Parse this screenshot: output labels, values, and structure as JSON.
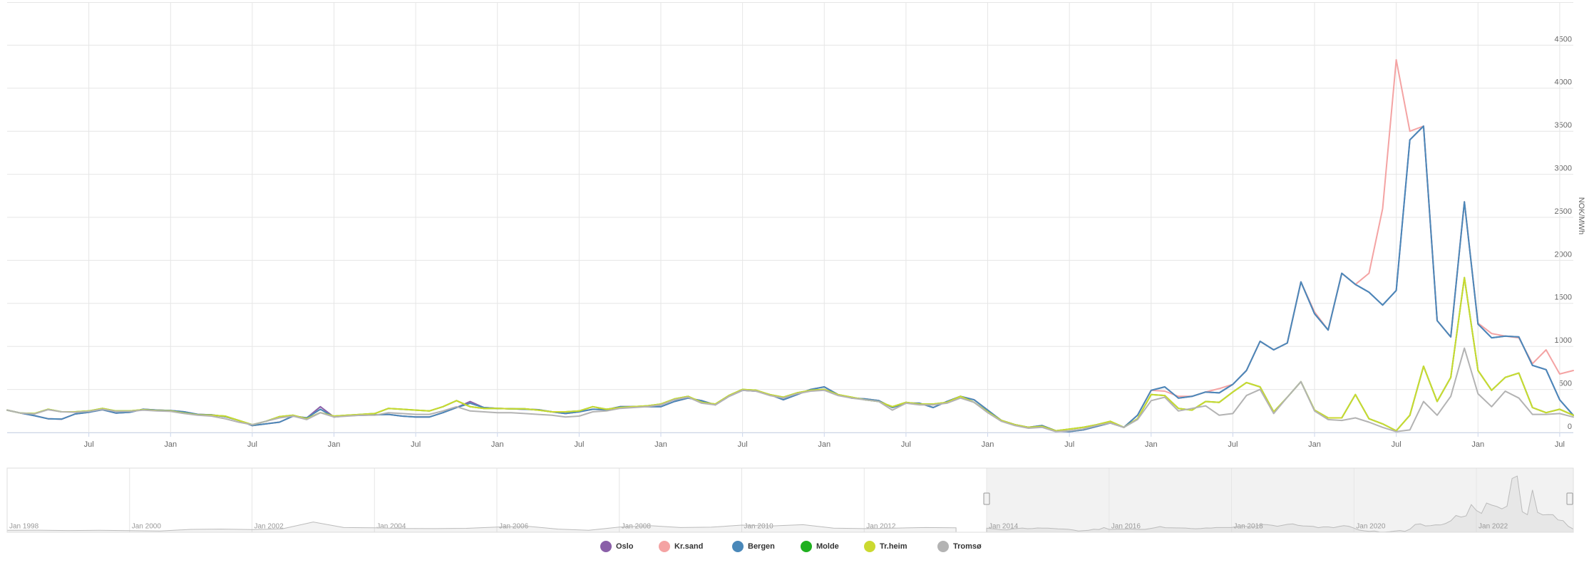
{
  "chart_data": {
    "type": "line",
    "y_axis_label": "NOK/MWh",
    "ylim": [
      0,
      5000
    ],
    "yticks": [
      0,
      500,
      1000,
      1500,
      2000,
      2500,
      3000,
      3500,
      4000,
      4500
    ],
    "xlim": [
      "2014-01",
      "2023-08"
    ],
    "xticks": [
      {
        "value": "2014-07",
        "label": "Jul"
      },
      {
        "value": "2015-01",
        "label": "Jan"
      },
      {
        "value": "2015-07",
        "label": "Jul"
      },
      {
        "value": "2016-01",
        "label": "Jan"
      },
      {
        "value": "2016-07",
        "label": "Jul"
      },
      {
        "value": "2017-01",
        "label": "Jan"
      },
      {
        "value": "2017-07",
        "label": "Jul"
      },
      {
        "value": "2018-01",
        "label": "Jan"
      },
      {
        "value": "2018-07",
        "label": "Jul"
      },
      {
        "value": "2019-01",
        "label": "Jan"
      },
      {
        "value": "2019-07",
        "label": "Jul"
      },
      {
        "value": "2020-01",
        "label": "Jan"
      },
      {
        "value": "2020-07",
        "label": "Jul"
      },
      {
        "value": "2021-01",
        "label": "Jan"
      },
      {
        "value": "2021-07",
        "label": "Jul"
      },
      {
        "value": "2022-01",
        "label": "Jan"
      },
      {
        "value": "2022-07",
        "label": "Jul"
      },
      {
        "value": "2023-01",
        "label": "Jan"
      },
      {
        "value": "2023-07",
        "label": "Jul"
      }
    ],
    "grid": true,
    "legend": "bottom",
    "x": [
      "2014-01",
      "2014-02",
      "2014-03",
      "2014-04",
      "2014-05",
      "2014-06",
      "2014-07",
      "2014-08",
      "2014-09",
      "2014-10",
      "2014-11",
      "2014-12",
      "2015-01",
      "2015-02",
      "2015-03",
      "2015-04",
      "2015-05",
      "2015-06",
      "2015-07",
      "2015-08",
      "2015-09",
      "2015-10",
      "2015-11",
      "2015-12",
      "2016-01",
      "2016-02",
      "2016-03",
      "2016-04",
      "2016-05",
      "2016-06",
      "2016-07",
      "2016-08",
      "2016-09",
      "2016-10",
      "2016-11",
      "2016-12",
      "2017-01",
      "2017-02",
      "2017-03",
      "2017-04",
      "2017-05",
      "2017-06",
      "2017-07",
      "2017-08",
      "2017-09",
      "2017-10",
      "2017-11",
      "2017-12",
      "2018-01",
      "2018-02",
      "2018-03",
      "2018-04",
      "2018-05",
      "2018-06",
      "2018-07",
      "2018-08",
      "2018-09",
      "2018-10",
      "2018-11",
      "2018-12",
      "2019-01",
      "2019-02",
      "2019-03",
      "2019-04",
      "2019-05",
      "2019-06",
      "2019-07",
      "2019-08",
      "2019-09",
      "2019-10",
      "2019-11",
      "2019-12",
      "2020-01",
      "2020-02",
      "2020-03",
      "2020-04",
      "2020-05",
      "2020-06",
      "2020-07",
      "2020-08",
      "2020-09",
      "2020-10",
      "2020-11",
      "2020-12",
      "2021-01",
      "2021-02",
      "2021-03",
      "2021-04",
      "2021-05",
      "2021-06",
      "2021-07",
      "2021-08",
      "2021-09",
      "2021-10",
      "2021-11",
      "2021-12",
      "2022-01",
      "2022-02",
      "2022-03",
      "2022-04",
      "2022-05",
      "2022-06",
      "2022-07",
      "2022-08",
      "2022-09",
      "2022-10",
      "2022-11",
      "2022-12",
      "2023-01",
      "2023-02",
      "2023-03",
      "2023-04",
      "2023-05",
      "2023-06",
      "2023-07",
      "2023-08"
    ],
    "series": [
      {
        "name": "Oslo",
        "color": "#8a5fa8",
        "values": [
          260,
          225,
          195,
          160,
          155,
          215,
          235,
          265,
          225,
          235,
          270,
          260,
          255,
          240,
          210,
          205,
          185,
          140,
          80,
          100,
          120,
          190,
          170,
          300,
          180,
          195,
          200,
          205,
          210,
          190,
          180,
          180,
          230,
          290,
          360,
          290,
          280,
          275,
          270,
          265,
          240,
          220,
          240,
          270,
          265,
          300,
          300,
          300,
          300,
          360,
          400,
          370,
          320,
          420,
          490,
          480,
          440,
          380,
          440,
          500,
          530,
          440,
          400,
          390,
          370,
          290,
          340,
          340,
          290,
          360,
          420,
          380,
          260,
          140,
          90,
          60,
          80,
          20,
          10,
          30,
          70,
          110,
          60,
          200,
          490,
          530,
          400,
          420,
          470,
          460,
          560,
          720,
          1060,
          960,
          1040,
          1750,
          1380,
          1190,
          1850,
          1720,
          1630,
          1480,
          1650,
          3400,
          3560,
          1300,
          1110,
          2680,
          1260,
          1100,
          1120,
          1110,
          780,
          730,
          380,
          200
        ]
      },
      {
        "name": "Kr.sand",
        "color": "#f4a3a3",
        "values": [
          260,
          225,
          195,
          160,
          155,
          215,
          235,
          265,
          225,
          235,
          270,
          260,
          255,
          240,
          210,
          205,
          185,
          140,
          80,
          100,
          120,
          190,
          170,
          270,
          180,
          195,
          200,
          205,
          210,
          190,
          180,
          180,
          230,
          290,
          340,
          290,
          280,
          275,
          270,
          265,
          240,
          220,
          240,
          270,
          265,
          300,
          300,
          300,
          300,
          360,
          400,
          370,
          320,
          420,
          490,
          480,
          440,
          380,
          440,
          500,
          530,
          440,
          400,
          390,
          370,
          290,
          340,
          340,
          290,
          360,
          420,
          380,
          260,
          140,
          90,
          60,
          80,
          20,
          10,
          30,
          70,
          110,
          60,
          200,
          490,
          480,
          420,
          420,
          470,
          510,
          560,
          720,
          1060,
          960,
          1040,
          1750,
          1400,
          1190,
          1850,
          1720,
          1850,
          2600,
          4330,
          3500,
          3560,
          1300,
          1110,
          2680,
          1270,
          1150,
          1120,
          1100,
          800,
          960,
          680,
          720
        ]
      },
      {
        "name": "Bergen",
        "color": "#4a88b9",
        "values": [
          260,
          225,
          195,
          160,
          155,
          215,
          235,
          265,
          225,
          235,
          270,
          260,
          255,
          240,
          210,
          205,
          185,
          140,
          80,
          100,
          120,
          190,
          170,
          270,
          180,
          195,
          200,
          205,
          210,
          190,
          180,
          180,
          230,
          290,
          340,
          290,
          280,
          275,
          270,
          265,
          240,
          220,
          240,
          270,
          265,
          300,
          300,
          300,
          300,
          360,
          400,
          370,
          320,
          420,
          490,
          480,
          440,
          380,
          440,
          500,
          530,
          440,
          400,
          390,
          370,
          290,
          340,
          340,
          290,
          360,
          420,
          380,
          260,
          140,
          90,
          60,
          80,
          20,
          10,
          30,
          70,
          110,
          60,
          200,
          490,
          530,
          400,
          420,
          470,
          460,
          560,
          720,
          1060,
          960,
          1040,
          1750,
          1380,
          1190,
          1850,
          1720,
          1630,
          1480,
          1650,
          3400,
          3560,
          1300,
          1110,
          2680,
          1260,
          1100,
          1120,
          1110,
          780,
          730,
          380,
          200
        ]
      },
      {
        "name": "Molde",
        "color": "#1fb01f",
        "values": [
          260,
          225,
          220,
          270,
          240,
          240,
          250,
          280,
          250,
          250,
          265,
          255,
          250,
          225,
          205,
          200,
          190,
          140,
          90,
          130,
          185,
          200,
          160,
          230,
          190,
          200,
          210,
          220,
          280,
          270,
          260,
          250,
          300,
          370,
          300,
          280,
          280,
          275,
          275,
          260,
          240,
          240,
          250,
          300,
          270,
          290,
          300,
          310,
          330,
          390,
          420,
          350,
          330,
          430,
          500,
          490,
          440,
          410,
          460,
          490,
          500,
          440,
          410,
          380,
          360,
          300,
          350,
          330,
          330,
          350,
          420,
          350,
          240,
          140,
          90,
          60,
          70,
          20,
          40,
          60,
          90,
          130,
          60,
          160,
          440,
          430,
          280,
          260,
          360,
          350,
          470,
          580,
          530,
          240,
          410,
          590,
          260,
          170,
          170,
          440,
          160,
          100,
          20,
          200,
          770,
          360,
          640,
          1800,
          720,
          490,
          640,
          690,
          290,
          230,
          270,
          200
        ]
      },
      {
        "name": "Tr.heim",
        "color": "#cbd930",
        "values": [
          260,
          225,
          220,
          270,
          240,
          240,
          250,
          280,
          250,
          250,
          265,
          255,
          250,
          225,
          205,
          200,
          190,
          140,
          90,
          130,
          185,
          200,
          160,
          230,
          190,
          200,
          210,
          220,
          280,
          270,
          260,
          250,
          300,
          370,
          300,
          280,
          280,
          275,
          275,
          260,
          240,
          240,
          250,
          300,
          270,
          290,
          300,
          310,
          330,
          390,
          420,
          350,
          330,
          430,
          500,
          490,
          440,
          410,
          460,
          490,
          500,
          440,
          410,
          380,
          360,
          300,
          350,
          330,
          330,
          350,
          420,
          350,
          240,
          140,
          90,
          60,
          70,
          20,
          40,
          60,
          90,
          130,
          60,
          160,
          440,
          430,
          280,
          260,
          360,
          350,
          470,
          580,
          530,
          240,
          410,
          590,
          260,
          170,
          170,
          440,
          160,
          100,
          20,
          200,
          770,
          360,
          640,
          1800,
          720,
          490,
          640,
          690,
          290,
          230,
          270,
          200
        ]
      },
      {
        "name": "Tromsø",
        "color": "#b3b3b3",
        "values": [
          260,
          225,
          215,
          265,
          240,
          235,
          245,
          270,
          245,
          245,
          260,
          250,
          245,
          220,
          200,
          190,
          160,
          120,
          90,
          130,
          170,
          190,
          150,
          230,
          180,
          190,
          200,
          200,
          230,
          220,
          210,
          210,
          250,
          300,
          250,
          240,
          230,
          230,
          220,
          210,
          200,
          180,
          190,
          240,
          250,
          280,
          290,
          300,
          320,
          380,
          410,
          340,
          320,
          420,
          490,
          480,
          430,
          400,
          450,
          480,
          490,
          430,
          400,
          380,
          360,
          260,
          340,
          320,
          320,
          340,
          400,
          350,
          230,
          130,
          80,
          50,
          60,
          10,
          20,
          40,
          80,
          110,
          60,
          150,
          370,
          410,
          250,
          280,
          310,
          200,
          220,
          430,
          500,
          220,
          410,
          590,
          250,
          150,
          140,
          170,
          120,
          60,
          10,
          30,
          360,
          200,
          420,
          980,
          450,
          300,
          480,
          400,
          210,
          210,
          220,
          180
        ]
      }
    ],
    "navigator": {
      "xlim": [
        "1998-01",
        "2023-08"
      ],
      "ylim": [
        0,
        3700
      ],
      "selection": [
        "2014-01",
        "2023-08"
      ],
      "xticks": [
        {
          "value": "1998-01",
          "label": "Jan 1998"
        },
        {
          "value": "2000-01",
          "label": "Jan 2000"
        },
        {
          "value": "2002-01",
          "label": "Jan 2002"
        },
        {
          "value": "2004-01",
          "label": "Jan 2004"
        },
        {
          "value": "2006-01",
          "label": "Jan 2006"
        },
        {
          "value": "2008-01",
          "label": "Jan 2008"
        },
        {
          "value": "2010-01",
          "label": "Jan 2010"
        },
        {
          "value": "2012-01",
          "label": "Jan 2012"
        },
        {
          "value": "2014-01",
          "label": "Jan 2014"
        },
        {
          "value": "2016-01",
          "label": "Jan 2016"
        },
        {
          "value": "2018-01",
          "label": "Jan 2018"
        },
        {
          "value": "2020-01",
          "label": "Jan 2020"
        },
        {
          "value": "2022-01",
          "label": "Jan 2022"
        }
      ],
      "x": [
        "1998-01",
        "1998-07",
        "1999-01",
        "1999-07",
        "2000-01",
        "2000-07",
        "2001-01",
        "2001-07",
        "2002-01",
        "2002-07",
        "2003-01",
        "2003-07",
        "2004-01",
        "2004-07",
        "2005-01",
        "2005-07",
        "2006-01",
        "2006-07",
        "2007-01",
        "2007-07",
        "2008-01",
        "2008-07",
        "2009-01",
        "2009-07",
        "2010-01",
        "2010-07",
        "2011-01",
        "2011-07",
        "2012-01",
        "2012-07",
        "2013-01",
        "2013-07"
      ],
      "values": [
        120,
        130,
        110,
        120,
        100,
        80,
        180,
        200,
        170,
        220,
        650,
        300,
        280,
        240,
        230,
        250,
        330,
        380,
        200,
        120,
        330,
        420,
        300,
        320,
        450,
        400,
        480,
        260,
        230,
        260,
        300,
        280
      ]
    }
  }
}
